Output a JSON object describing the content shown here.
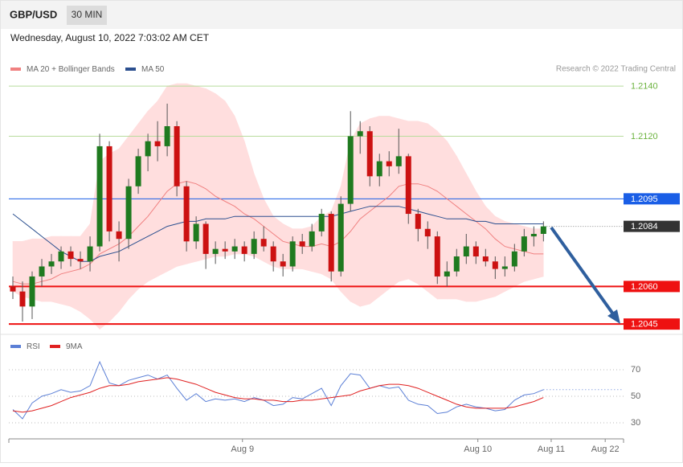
{
  "header": {
    "symbol": "GBP/USD",
    "timeframe": "30 MIN",
    "timestamp": "Wednesday, August 10, 2022 7:03:02 AM CET"
  },
  "chart_data": [
    {
      "type": "candlestick",
      "credit": "Research © 2022 Trading Central",
      "up_color": "#1f7a1f",
      "down_color": "#cc1111",
      "candles": [
        [
          1.206,
          1.2064,
          1.2055,
          1.2058
        ],
        [
          1.2058,
          1.2062,
          1.2046,
          1.2052
        ],
        [
          1.2052,
          1.2066,
          1.2047,
          1.2064
        ],
        [
          1.2064,
          1.2071,
          1.206,
          1.2068
        ],
        [
          1.2068,
          1.2073,
          1.2065,
          1.207
        ],
        [
          1.207,
          1.2076,
          1.2067,
          1.2074
        ],
        [
          1.2074,
          1.2076,
          1.2068,
          1.2071
        ],
        [
          1.2071,
          1.2074,
          1.2067,
          1.207
        ],
        [
          1.207,
          1.208,
          1.2066,
          1.2076
        ],
        [
          1.2076,
          1.2121,
          1.2074,
          1.2116
        ],
        [
          1.2116,
          1.2118,
          1.2078,
          1.2082
        ],
        [
          1.2082,
          1.2086,
          1.207,
          1.2079
        ],
        [
          1.2079,
          1.2103,
          1.2075,
          1.21
        ],
        [
          1.21,
          1.2115,
          1.2097,
          1.2112
        ],
        [
          1.2112,
          1.2121,
          1.2106,
          1.2118
        ],
        [
          1.2118,
          1.2126,
          1.211,
          1.2116
        ],
        [
          1.2116,
          1.2133,
          1.2112,
          1.2124
        ],
        [
          1.2124,
          1.2126,
          1.2096,
          1.21
        ],
        [
          1.21,
          1.2102,
          1.2074,
          1.2078
        ],
        [
          1.2078,
          1.2088,
          1.2075,
          1.2085
        ],
        [
          1.2085,
          1.2086,
          1.2067,
          1.2073
        ],
        [
          1.2073,
          1.2078,
          1.2069,
          1.2075
        ],
        [
          1.2075,
          1.2078,
          1.2071,
          1.2074
        ],
        [
          1.2074,
          1.2079,
          1.2071,
          1.2076
        ],
        [
          1.2076,
          1.2078,
          1.207,
          1.2073
        ],
        [
          1.2073,
          1.2082,
          1.2071,
          1.2079
        ],
        [
          1.2079,
          1.2084,
          1.2074,
          1.2076
        ],
        [
          1.2076,
          1.2078,
          1.2066,
          1.207
        ],
        [
          1.207,
          1.2073,
          1.2064,
          1.2068
        ],
        [
          1.2068,
          1.208,
          1.2066,
          1.2078
        ],
        [
          1.2078,
          1.2081,
          1.2073,
          1.2076
        ],
        [
          1.2076,
          1.2085,
          1.2074,
          1.2082
        ],
        [
          1.2082,
          1.2091,
          1.208,
          1.2089
        ],
        [
          1.2089,
          1.209,
          1.2062,
          1.2066
        ],
        [
          1.2066,
          1.2096,
          1.2064,
          1.2093
        ],
        [
          1.2093,
          1.213,
          1.209,
          1.212
        ],
        [
          1.212,
          1.2126,
          1.2113,
          1.2122
        ],
        [
          1.2122,
          1.2124,
          1.21,
          1.2104
        ],
        [
          1.2104,
          1.2113,
          1.21,
          1.211
        ],
        [
          1.211,
          1.2114,
          1.2104,
          1.2108
        ],
        [
          1.2108,
          1.2123,
          1.2105,
          1.2112
        ],
        [
          1.2112,
          1.2113,
          1.2085,
          1.2089
        ],
        [
          1.2089,
          1.2091,
          1.2078,
          1.2083
        ],
        [
          1.2083,
          1.2086,
          1.2075,
          1.208
        ],
        [
          1.208,
          1.2082,
          1.2061,
          1.2064
        ],
        [
          1.2064,
          1.207,
          1.206,
          1.2066
        ],
        [
          1.2066,
          1.2075,
          1.2064,
          1.2072
        ],
        [
          1.2072,
          1.2081,
          1.2069,
          1.2076
        ],
        [
          1.2076,
          1.2078,
          1.2069,
          1.2072
        ],
        [
          1.2072,
          1.2075,
          1.2068,
          1.207
        ],
        [
          1.207,
          1.2072,
          1.2063,
          1.2067
        ],
        [
          1.2067,
          1.2072,
          1.2064,
          1.2068
        ],
        [
          1.2068,
          1.2077,
          1.2066,
          1.2074
        ],
        [
          1.2074,
          1.2083,
          1.2072,
          1.208
        ],
        [
          1.208,
          1.2084,
          1.2076,
          1.2081
        ],
        [
          1.2081,
          1.2086,
          1.2078,
          1.2084
        ]
      ],
      "series": [
        {
          "name": "MA 20 + Bollinger Bands",
          "color": "#f08080",
          "band_color": "#ffdede",
          "values": [
            1.2062,
            1.2061,
            1.2061,
            1.2062,
            1.2063,
            1.2065,
            1.2066,
            1.2067,
            1.2069,
            1.2073,
            1.2075,
            1.2077,
            1.208,
            1.2084,
            1.2088,
            1.2093,
            1.2098,
            1.2101,
            1.2102,
            1.2101,
            1.2099,
            1.2096,
            1.2094,
            1.2092,
            1.2089,
            1.2087,
            1.2084,
            1.2081,
            1.2078,
            1.2077,
            1.2076,
            1.2076,
            1.2077,
            1.2076,
            1.2078,
            1.2082,
            1.2087,
            1.209,
            1.2093,
            1.2096,
            1.21,
            1.2101,
            1.2101,
            1.21,
            1.2098,
            1.2095,
            1.2092,
            1.2089,
            1.2086,
            1.2083,
            1.2079,
            1.2076,
            1.2075,
            1.2074,
            1.2073,
            1.2073
          ],
          "upper": [
            1.2078,
            1.2078,
            1.2079,
            1.2079,
            1.208,
            1.208,
            1.208,
            1.208,
            1.2085,
            1.211,
            1.2113,
            1.2115,
            1.212,
            1.2125,
            1.213,
            1.2134,
            1.214,
            1.2141,
            1.2141,
            1.214,
            1.2139,
            1.2137,
            1.2134,
            1.2128,
            1.2118,
            1.2105,
            1.2095,
            1.2088,
            1.2085,
            1.2083,
            1.2083,
            1.2084,
            1.2088,
            1.209,
            1.21,
            1.2118,
            1.2125,
            1.2127,
            1.2128,
            1.2128,
            1.2127,
            1.2126,
            1.2126,
            1.2125,
            1.2122,
            1.2118,
            1.2112,
            1.2105,
            1.2098,
            1.2092,
            1.2088,
            1.2086,
            1.2085,
            1.2084,
            1.2083,
            1.2083
          ],
          "lower": [
            1.2058,
            1.2056,
            1.2055,
            1.2054,
            1.2054,
            1.2053,
            1.2052,
            1.205,
            1.2047,
            1.2043,
            1.2046,
            1.205,
            1.2055,
            1.2059,
            1.2062,
            1.2064,
            1.2066,
            1.2068,
            1.2069,
            1.207,
            1.2071,
            1.2072,
            1.2072,
            1.2073,
            1.2073,
            1.2072,
            1.207,
            1.2068,
            1.2067,
            1.2067,
            1.2067,
            1.2066,
            1.2065,
            1.2063,
            1.2058,
            1.2054,
            1.2052,
            1.2053,
            1.2056,
            1.2059,
            1.2062,
            1.2063,
            1.2061,
            1.2058,
            1.2055,
            1.2055,
            1.2055,
            1.2054,
            1.2054,
            1.2055,
            1.2056,
            1.2058,
            1.206,
            1.2062,
            1.2063,
            1.2064
          ]
        },
        {
          "name": "MA 50",
          "color": "#2b4f8f",
          "values": [
            1.2089,
            1.2086,
            1.2083,
            1.208,
            1.2077,
            1.2074,
            1.2072,
            1.207,
            1.207,
            1.2072,
            1.2073,
            1.2074,
            1.2076,
            1.2078,
            1.208,
            1.2082,
            1.2084,
            1.2085,
            1.2086,
            1.2086,
            1.2087,
            1.2087,
            1.2087,
            1.2088,
            1.2088,
            1.2088,
            1.2088,
            1.2088,
            1.2088,
            1.2088,
            1.2088,
            1.2088,
            1.2088,
            1.2088,
            1.2089,
            1.209,
            1.2091,
            1.2092,
            1.2092,
            1.2092,
            1.2092,
            1.2091,
            1.209,
            1.2089,
            1.2088,
            1.2087,
            1.2087,
            1.2087,
            1.2086,
            1.2086,
            1.2085,
            1.2085,
            1.2085,
            1.2085,
            1.2085,
            1.2085
          ]
        }
      ],
      "xlim": [
        0,
        63.3
      ],
      "ylim": [
        1.20428,
        1.21439
      ],
      "levels": [
        {
          "value": 1.214,
          "label": "1.2140",
          "color": "#6cb33f",
          "boxed": false,
          "dashed": false,
          "weight": 1,
          "line_color": "#b8dc9c"
        },
        {
          "value": 1.212,
          "label": "1.2120",
          "color": "#6cb33f",
          "boxed": false,
          "dashed": false,
          "weight": 1,
          "line_color": "#b8dc9c"
        },
        {
          "value": 1.2095,
          "label": "1.2095",
          "color": "#1a5ee6",
          "boxed": true,
          "dashed": false,
          "weight": 1,
          "line_color": "#1a5ee6"
        },
        {
          "value": 1.2084,
          "label": "1.2084",
          "color": "#333333",
          "boxed": true,
          "dashed": true,
          "weight": 1,
          "line_color": "#888888"
        },
        {
          "value": 1.206,
          "label": "1.2060",
          "color": "#ee1111",
          "boxed": true,
          "dashed": false,
          "weight": 2,
          "line_color": "#ee1111"
        },
        {
          "value": 1.2045,
          "label": "1.2045",
          "color": "#ee1111",
          "boxed": true,
          "dashed": false,
          "weight": 2,
          "line_color": "#ee1111"
        }
      ]
    },
    {
      "type": "line",
      "series": [
        {
          "name": "RSI",
          "color": "#5b7fd6",
          "values": [
            40,
            33,
            45,
            50,
            52,
            55,
            53,
            54,
            58,
            76,
            60,
            58,
            62,
            64,
            66,
            63,
            66,
            56,
            47,
            52,
            46,
            48,
            47,
            48,
            46,
            49,
            47,
            43,
            44,
            49,
            48,
            52,
            56,
            43,
            58,
            67,
            66,
            56,
            58,
            56,
            57,
            47,
            44,
            43,
            37,
            38,
            42,
            44,
            42,
            41,
            39,
            40,
            47,
            51,
            52,
            55
          ]
        },
        {
          "name": "9MA",
          "color": "#e02020",
          "values": [
            39,
            38,
            39,
            41,
            43,
            46,
            49,
            51,
            53,
            56,
            58,
            58,
            59,
            61,
            62,
            63,
            64,
            63,
            61,
            59,
            56,
            53,
            51,
            49,
            48,
            48,
            47,
            47,
            46,
            46,
            47,
            47,
            48,
            49,
            50,
            51,
            54,
            56,
            58,
            59,
            59,
            58,
            56,
            53,
            50,
            47,
            44,
            42,
            41,
            41,
            41,
            41,
            42,
            44,
            46,
            49
          ]
        }
      ],
      "xlim": [
        0,
        63.3
      ],
      "ylim": [
        20,
        80
      ],
      "yticks": [
        30,
        50,
        70
      ],
      "xticks": [
        {
          "value": 23.8,
          "label": "Aug 9"
        },
        {
          "value": 48.2,
          "label": "Aug 10"
        },
        {
          "value": 55.8,
          "label": "Aug 11"
        },
        {
          "value": 61.4,
          "label": "Aug 22"
        }
      ]
    }
  ]
}
